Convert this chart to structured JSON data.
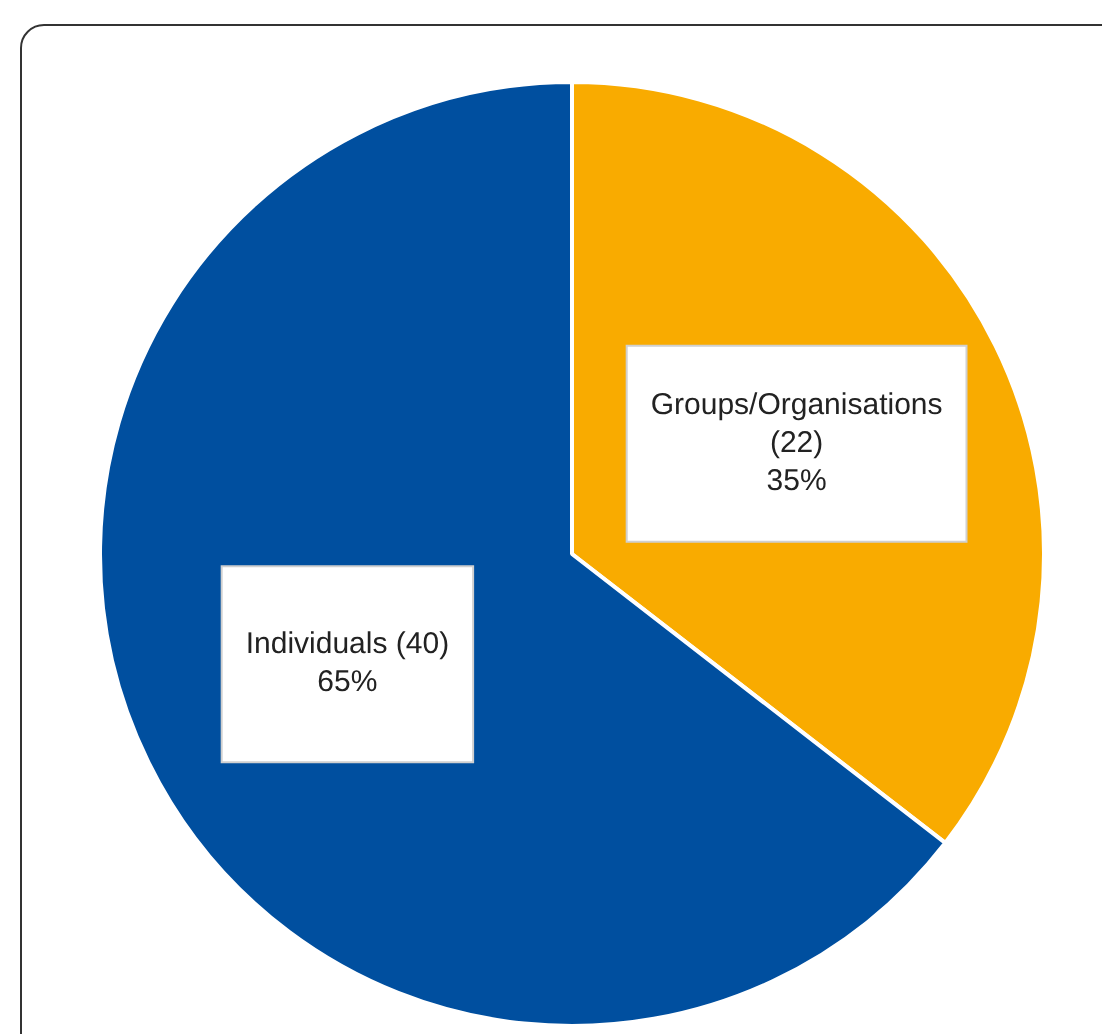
{
  "chart_data": {
    "type": "pie",
    "categories": [
      "Groups/Organisations",
      "Individuals"
    ],
    "values": [
      22,
      40
    ],
    "value_labels": [
      "(22) 35%",
      "(40) 65%"
    ],
    "colors": [
      "#f9ab00",
      "#004f9f"
    ],
    "legend": false
  }
}
